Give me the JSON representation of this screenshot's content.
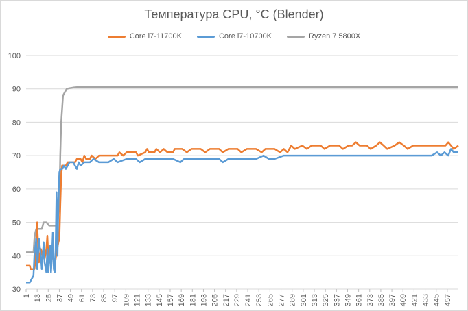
{
  "chart_data": {
    "type": "line",
    "title": "Температура CPU, °C (Blender)",
    "xlabel": "",
    "ylabel": "",
    "ylim": [
      30,
      100
    ],
    "y_ticks": [
      30,
      40,
      50,
      60,
      70,
      80,
      90,
      100
    ],
    "x_range": [
      1,
      469
    ],
    "x_ticks": [
      1,
      13,
      25,
      37,
      49,
      61,
      73,
      85,
      97,
      109,
      121,
      133,
      145,
      157,
      169,
      181,
      193,
      205,
      217,
      229,
      241,
      253,
      265,
      277,
      289,
      301,
      313,
      325,
      337,
      349,
      361,
      373,
      385,
      397,
      409,
      421,
      433,
      445,
      457
    ],
    "grid": "horizontal",
    "legend_position": "top",
    "series": [
      {
        "name": "Core i7-11700K",
        "color": "#ED7D31",
        "points": [
          [
            1,
            37
          ],
          [
            5,
            37
          ],
          [
            6,
            36
          ],
          [
            10,
            36
          ],
          [
            11,
            38
          ],
          [
            12,
            44
          ],
          [
            13,
            50
          ],
          [
            14,
            43
          ],
          [
            15,
            38
          ],
          [
            17,
            42
          ],
          [
            19,
            40
          ],
          [
            21,
            39
          ],
          [
            23,
            42
          ],
          [
            24,
            46
          ],
          [
            25,
            40
          ],
          [
            27,
            38
          ],
          [
            29,
            43
          ],
          [
            30,
            40
          ],
          [
            32,
            37
          ],
          [
            34,
            41
          ],
          [
            36,
            44
          ],
          [
            37,
            45
          ],
          [
            38,
            55
          ],
          [
            39,
            64
          ],
          [
            40,
            67
          ],
          [
            42,
            67
          ],
          [
            44,
            67
          ],
          [
            46,
            68
          ],
          [
            50,
            68
          ],
          [
            54,
            68
          ],
          [
            56,
            69
          ],
          [
            60,
            69
          ],
          [
            62,
            68
          ],
          [
            64,
            70
          ],
          [
            66,
            69
          ],
          [
            70,
            69
          ],
          [
            72,
            70
          ],
          [
            76,
            69
          ],
          [
            80,
            70
          ],
          [
            90,
            70
          ],
          [
            100,
            70
          ],
          [
            102,
            71
          ],
          [
            106,
            70
          ],
          [
            110,
            71
          ],
          [
            120,
            71
          ],
          [
            122,
            70
          ],
          [
            130,
            71
          ],
          [
            132,
            72
          ],
          [
            134,
            71
          ],
          [
            140,
            71
          ],
          [
            142,
            72
          ],
          [
            146,
            71
          ],
          [
            150,
            72
          ],
          [
            154,
            71
          ],
          [
            160,
            71
          ],
          [
            162,
            72
          ],
          [
            170,
            72
          ],
          [
            175,
            71
          ],
          [
            180,
            72
          ],
          [
            190,
            72
          ],
          [
            195,
            71
          ],
          [
            200,
            72
          ],
          [
            210,
            72
          ],
          [
            214,
            71
          ],
          [
            220,
            72
          ],
          [
            230,
            72
          ],
          [
            234,
            71
          ],
          [
            240,
            72
          ],
          [
            250,
            72
          ],
          [
            256,
            71
          ],
          [
            260,
            72
          ],
          [
            270,
            72
          ],
          [
            276,
            71
          ],
          [
            280,
            72
          ],
          [
            284,
            71
          ],
          [
            288,
            73
          ],
          [
            292,
            72
          ],
          [
            300,
            73
          ],
          [
            305,
            72
          ],
          [
            310,
            73
          ],
          [
            320,
            73
          ],
          [
            324,
            72
          ],
          [
            330,
            73
          ],
          [
            340,
            73
          ],
          [
            344,
            72
          ],
          [
            350,
            73
          ],
          [
            354,
            73
          ],
          [
            358,
            74
          ],
          [
            362,
            73
          ],
          [
            370,
            73
          ],
          [
            374,
            72
          ],
          [
            380,
            73
          ],
          [
            384,
            74
          ],
          [
            388,
            73
          ],
          [
            392,
            72
          ],
          [
            400,
            73
          ],
          [
            405,
            74
          ],
          [
            410,
            73
          ],
          [
            414,
            72
          ],
          [
            420,
            73
          ],
          [
            430,
            73
          ],
          [
            440,
            73
          ],
          [
            450,
            73
          ],
          [
            455,
            73
          ],
          [
            458,
            74
          ],
          [
            461,
            73
          ],
          [
            464,
            72
          ],
          [
            469,
            73
          ]
        ]
      },
      {
        "name": "Core i7-10700K",
        "color": "#5B9BD5",
        "points": [
          [
            1,
            32
          ],
          [
            5,
            32
          ],
          [
            7,
            33
          ],
          [
            9,
            34
          ],
          [
            10,
            40
          ],
          [
            12,
            45
          ],
          [
            13,
            36
          ],
          [
            15,
            45
          ],
          [
            17,
            40
          ],
          [
            18,
            36
          ],
          [
            20,
            44
          ],
          [
            21,
            38
          ],
          [
            23,
            35
          ],
          [
            24,
            42
          ],
          [
            25,
            35
          ],
          [
            27,
            43
          ],
          [
            28,
            35
          ],
          [
            29,
            40
          ],
          [
            30,
            47
          ],
          [
            31,
            36
          ],
          [
            32,
            35
          ],
          [
            33,
            42
          ],
          [
            34,
            59
          ],
          [
            35,
            40
          ],
          [
            36,
            57
          ],
          [
            37,
            65
          ],
          [
            38,
            66
          ],
          [
            40,
            66
          ],
          [
            42,
            67
          ],
          [
            44,
            66
          ],
          [
            46,
            67
          ],
          [
            48,
            68
          ],
          [
            52,
            68
          ],
          [
            54,
            67
          ],
          [
            56,
            66
          ],
          [
            58,
            68
          ],
          [
            60,
            67
          ],
          [
            64,
            68
          ],
          [
            70,
            68
          ],
          [
            74,
            69
          ],
          [
            80,
            68
          ],
          [
            90,
            68
          ],
          [
            96,
            69
          ],
          [
            100,
            68
          ],
          [
            110,
            69
          ],
          [
            120,
            69
          ],
          [
            124,
            68
          ],
          [
            130,
            69
          ],
          [
            140,
            69
          ],
          [
            150,
            69
          ],
          [
            160,
            69
          ],
          [
            168,
            68
          ],
          [
            172,
            69
          ],
          [
            180,
            69
          ],
          [
            190,
            69
          ],
          [
            200,
            69
          ],
          [
            210,
            69
          ],
          [
            214,
            68
          ],
          [
            220,
            69
          ],
          [
            230,
            69
          ],
          [
            240,
            69
          ],
          [
            250,
            69
          ],
          [
            258,
            70
          ],
          [
            264,
            69
          ],
          [
            270,
            69
          ],
          [
            280,
            70
          ],
          [
            290,
            70
          ],
          [
            300,
            70
          ],
          [
            310,
            70
          ],
          [
            320,
            70
          ],
          [
            330,
            70
          ],
          [
            340,
            70
          ],
          [
            350,
            70
          ],
          [
            360,
            70
          ],
          [
            370,
            70
          ],
          [
            380,
            70
          ],
          [
            390,
            70
          ],
          [
            400,
            70
          ],
          [
            410,
            70
          ],
          [
            420,
            70
          ],
          [
            430,
            70
          ],
          [
            440,
            70
          ],
          [
            446,
            71
          ],
          [
            450,
            70
          ],
          [
            454,
            71
          ],
          [
            458,
            70
          ],
          [
            461,
            72
          ],
          [
            464,
            71
          ],
          [
            469,
            71
          ]
        ]
      },
      {
        "name": "Ryzen 7 5800X",
        "color": "#A5A5A5",
        "points": [
          [
            1,
            41
          ],
          [
            5,
            41
          ],
          [
            9,
            41
          ],
          [
            10,
            45
          ],
          [
            11,
            47
          ],
          [
            12,
            48
          ],
          [
            16,
            48
          ],
          [
            18,
            48
          ],
          [
            20,
            50
          ],
          [
            23,
            50
          ],
          [
            26,
            49
          ],
          [
            28,
            49
          ],
          [
            30,
            49
          ],
          [
            33,
            49
          ],
          [
            35,
            50
          ],
          [
            37,
            56
          ],
          [
            38,
            70
          ],
          [
            39,
            80
          ],
          [
            40,
            84
          ],
          [
            41,
            88
          ],
          [
            43,
            89
          ],
          [
            45,
            90
          ],
          [
            48,
            90.2
          ],
          [
            52,
            90.4
          ],
          [
            56,
            90.5
          ],
          [
            60,
            90.5
          ],
          [
            100,
            90.5
          ],
          [
            200,
            90.5
          ],
          [
            300,
            90.5
          ],
          [
            400,
            90.5
          ],
          [
            469,
            90.5
          ]
        ]
      }
    ]
  }
}
